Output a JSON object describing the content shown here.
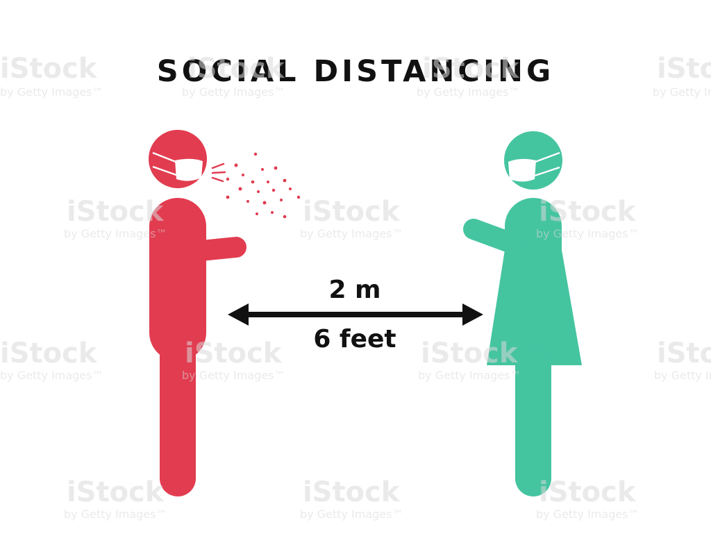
{
  "title": "SOCIAL DISTANCING",
  "distance": {
    "metric": "2 m",
    "imperial": "6 feet"
  },
  "watermark": {
    "brand": "iStock",
    "byline": "by Getty Images™"
  },
  "colors": {
    "sick_person": "#e23c50",
    "healthy_person": "#45c4a0",
    "arrow": "#111111",
    "text": "#111111",
    "background": "#ffffff"
  },
  "icons": {
    "left_figure": "masked-man-sneezing-icon",
    "right_figure": "masked-woman-icon",
    "arrow": "double-headed-arrow-icon"
  }
}
